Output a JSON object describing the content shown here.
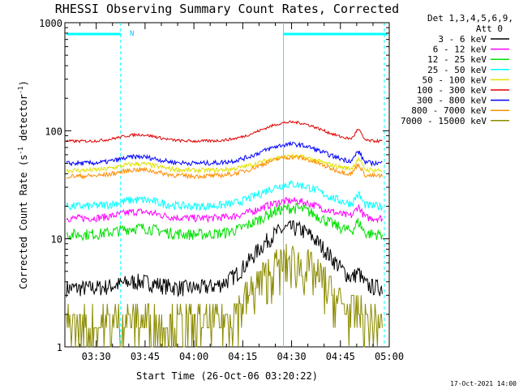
{
  "chart_data": {
    "type": "line",
    "title": "RHESSI Observing Summary Count Rates, Corrected",
    "xlabel": "Start Time (26-Oct-06 03:20:22)",
    "ylabel_main": "Corrected Count Rate (s",
    "ylabel_exp1": "-1",
    "ylabel_mid": " detector",
    "ylabel_exp2": "-1",
    "ylabel_end": ")",
    "yscale": "log",
    "ylim": [
      1,
      1000
    ],
    "xlim": [
      "03:20",
      "05:00"
    ],
    "x_ticks": [
      "03:30",
      "03:45",
      "04:00",
      "04:15",
      "04:30",
      "04:45",
      "05:00"
    ],
    "y_ticks": [
      "1",
      "10",
      "100",
      "1000"
    ],
    "legend_header": [
      "Det 1,3,4,5,6,9,",
      "Att 0"
    ],
    "series": [
      {
        "name": "3 - 6 keV",
        "color": "#000000"
      },
      {
        "name": "6 - 12 keV",
        "color": "#ff00ff"
      },
      {
        "name": "12 - 25 keV",
        "color": "#00e000"
      },
      {
        "name": "25 - 50 keV",
        "color": "#00ffff"
      },
      {
        "name": "50 - 100 keV",
        "color": "#e0e000"
      },
      {
        "name": "100 - 300 keV",
        "color": "#e00000"
      },
      {
        "name": "300 - 800 keV",
        "color": "#0000ff"
      },
      {
        "name": "800 - 7000 keV",
        "color": "#ff8c00"
      },
      {
        "name": "7000 - 15000 keV",
        "color": "#8b8b00"
      }
    ],
    "night_marker": "N",
    "timestamp": "17-Oct-2021 14:00"
  }
}
